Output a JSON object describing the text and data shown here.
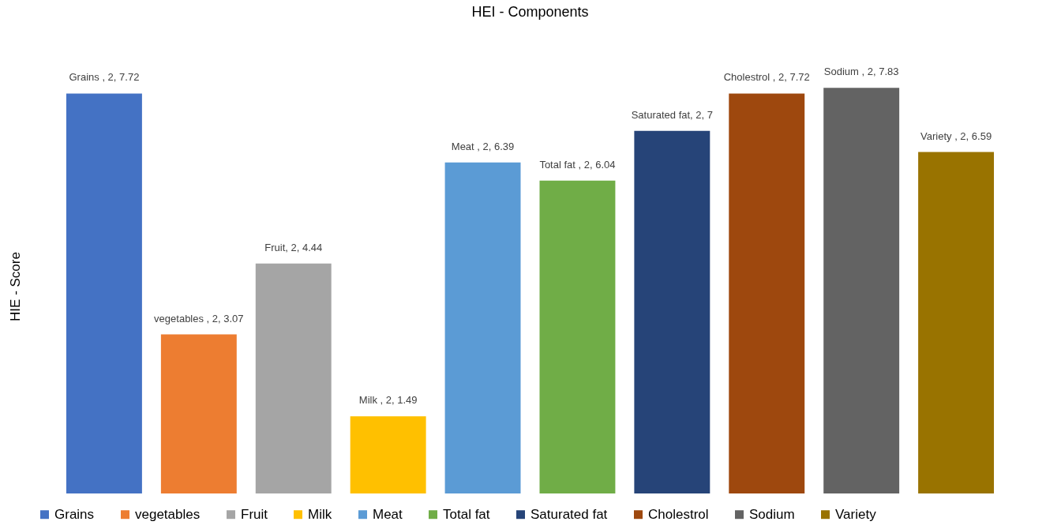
{
  "chart_data": {
    "type": "bar",
    "title": "HEI - Components",
    "ylabel": "HIE - Score",
    "categories": [
      null,
      null,
      null,
      null,
      null,
      null,
      null,
      null,
      null,
      null
    ],
    "stacked": true,
    "legend": "bottom",
    "grid": false,
    "series": [
      {
        "name": "Grains",
        "color": "#4472c4",
        "values": [
          7.72,
          null,
          null,
          null,
          null,
          null,
          null,
          null,
          null,
          null
        ],
        "value_labels": [
          "Grains , 2, 7.72",
          null,
          null,
          null,
          null,
          null,
          null,
          null,
          null,
          null
        ]
      },
      {
        "name": "vegetables",
        "color": "#ed7d31",
        "values": [
          null,
          3.07,
          null,
          null,
          null,
          null,
          null,
          null,
          null,
          null
        ],
        "value_labels": [
          null,
          "vegetables , 2, 3.07",
          null,
          null,
          null,
          null,
          null,
          null,
          null,
          null
        ]
      },
      {
        "name": "Fruit",
        "color": "#a5a5a5",
        "values": [
          null,
          null,
          4.44,
          null,
          null,
          null,
          null,
          null,
          null,
          null
        ],
        "value_labels": [
          null,
          null,
          "Fruit, 2, 4.44",
          null,
          null,
          null,
          null,
          null,
          null,
          null
        ]
      },
      {
        "name": "Milk",
        "color": "#ffc000",
        "values": [
          null,
          null,
          null,
          1.49,
          null,
          null,
          null,
          null,
          null,
          null
        ],
        "value_labels": [
          null,
          null,
          null,
          "Milk , 2, 1.49",
          null,
          null,
          null,
          null,
          null,
          null
        ]
      },
      {
        "name": "Meat",
        "color": "#5b9bd5",
        "values": [
          null,
          null,
          null,
          null,
          6.39,
          null,
          null,
          null,
          null,
          null
        ],
        "value_labels": [
          null,
          null,
          null,
          null,
          "Meat , 2, 6.39",
          null,
          null,
          null,
          null,
          null
        ]
      },
      {
        "name": "Total fat",
        "color": "#70ad47",
        "values": [
          null,
          null,
          null,
          null,
          null,
          6.04,
          null,
          null,
          null,
          null
        ],
        "value_labels": [
          null,
          null,
          null,
          null,
          null,
          "Total fat , 2, 6.04",
          null,
          null,
          null,
          null
        ]
      },
      {
        "name": "Saturated fat",
        "color": "#264478",
        "values": [
          null,
          null,
          null,
          null,
          null,
          null,
          7,
          null,
          null,
          null
        ],
        "value_labels": [
          null,
          null,
          null,
          null,
          null,
          null,
          "Saturated fat, 2, 7",
          null,
          null,
          null
        ]
      },
      {
        "name": "Cholestrol",
        "color": "#9e480e",
        "values": [
          null,
          null,
          null,
          null,
          null,
          null,
          null,
          7.72,
          null,
          null
        ],
        "value_labels": [
          null,
          null,
          null,
          null,
          null,
          null,
          null,
          "Cholestrol , 2, 7.72",
          null,
          null
        ]
      },
      {
        "name": "Sodium",
        "color": "#636363",
        "values": [
          null,
          null,
          null,
          null,
          null,
          null,
          null,
          null,
          7.83,
          null
        ],
        "value_labels": [
          null,
          null,
          null,
          null,
          null,
          null,
          null,
          null,
          "Sodium , 2, 7.83",
          null
        ]
      },
      {
        "name": "Variety",
        "color": "#997300",
        "values": [
          null,
          null,
          null,
          null,
          null,
          null,
          null,
          null,
          null,
          6.59
        ],
        "value_labels": [
          null,
          null,
          null,
          null,
          null,
          null,
          null,
          null,
          null,
          "Variety , 2, 6.59"
        ]
      }
    ]
  }
}
